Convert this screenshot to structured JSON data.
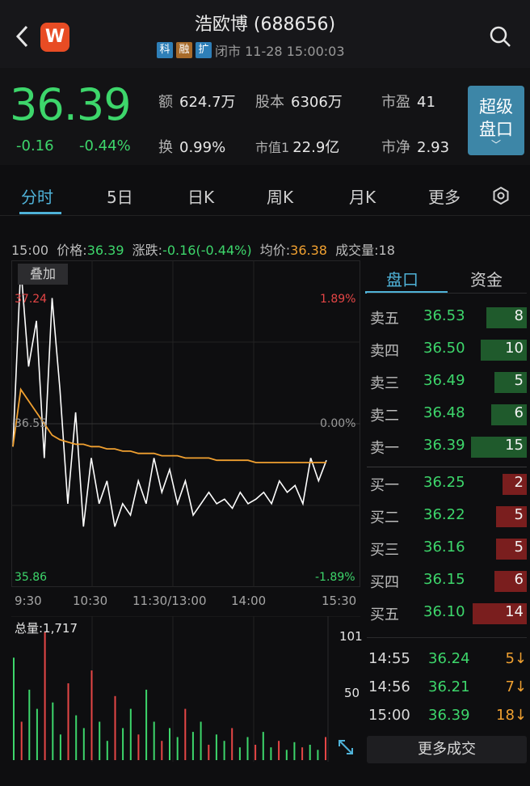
{
  "header": {
    "title": "浩欧博 (688656)",
    "logo_letter": "W",
    "tags": [
      "科",
      "融",
      "扩"
    ],
    "status": "闭市 11-28 15:00:03"
  },
  "quote": {
    "price": "36.39",
    "change": "-0.16",
    "change_pct": "-0.44%",
    "amount_label": "额",
    "amount": "624.7万",
    "share_label": "股本",
    "share": "6306万",
    "pe_label": "市盈",
    "pe": "41",
    "turnover_label": "换",
    "turnover": "0.99%",
    "mcap_label": "市值1",
    "mcap": "22.9亿",
    "pb_label": "市净",
    "pb": "2.93",
    "super_btn_line1": "超级",
    "super_btn_line2": "盘口",
    "super_btn_chevron": "﹀"
  },
  "tabs": [
    "分时",
    "5日",
    "日K",
    "周K",
    "月K",
    "更多"
  ],
  "info_bar": {
    "time": "15:00",
    "price_label": "价格:",
    "price": "36.39",
    "change_label": "涨跌:",
    "change": "-0.16(-0.44%)",
    "avg_label": "均价:",
    "avg": "36.38",
    "vol_label": "成交量:",
    "vol": "18"
  },
  "chart": {
    "overlay_label": "叠加",
    "y_high": "37.24",
    "y_mid": "36.55",
    "y_low": "35.86",
    "pct_high": "1.89%",
    "pct_mid": "0.00%",
    "pct_low": "-1.89%",
    "x_ticks": [
      "9:30",
      "10:30",
      "11:30/13:00",
      "14:00",
      "15:30"
    ],
    "vol_total": "总量:1,717",
    "vol_max": "101",
    "vol_mid": "50"
  },
  "chart_data": {
    "type": "line",
    "series": [
      {
        "values": [
          36.45,
          37.24,
          36.8,
          37.0,
          36.4,
          37.1,
          36.7,
          36.2,
          36.6,
          36.1,
          36.4,
          36.2,
          36.3,
          36.1,
          36.2,
          36.15,
          36.3,
          36.2,
          36.4,
          36.25,
          36.35,
          36.2,
          36.3,
          36.15,
          36.2,
          36.25,
          36.2,
          36.22,
          36.18,
          36.25,
          36.2,
          36.22,
          36.25,
          36.2,
          36.3,
          36.25,
          36.28,
          36.2,
          36.4,
          36.3,
          36.39
        ]
      },
      {
        "values": [
          36.45,
          36.7,
          36.65,
          36.6,
          36.55,
          36.5,
          36.48,
          36.47,
          36.46,
          36.46,
          36.45,
          36.45,
          36.44,
          36.44,
          36.43,
          36.43,
          36.42,
          36.42,
          36.42,
          36.41,
          36.41,
          36.41,
          36.4,
          36.4,
          36.4,
          36.4,
          36.39,
          36.39,
          36.39,
          36.39,
          36.39,
          36.38,
          36.38,
          36.38,
          36.38,
          36.38,
          36.38,
          36.38,
          36.38,
          36.38,
          36.38
        ]
      }
    ],
    "volumes": [
      80,
      30,
      55,
      40,
      100,
      45,
      20,
      60,
      35,
      25,
      70,
      30,
      15,
      50,
      25,
      40,
      20,
      55,
      30,
      15,
      25,
      18,
      40,
      22,
      30,
      12,
      20,
      15,
      25,
      10,
      18,
      12,
      22,
      10,
      15,
      8,
      14,
      10,
      12,
      8,
      18
    ]
  },
  "book": {
    "tab_active": "盘口",
    "tab_other": "资金",
    "asks": [
      {
        "label": "卖五",
        "price": "36.53",
        "vol": "8",
        "frac": 0.25
      },
      {
        "label": "卖四",
        "price": "36.50",
        "vol": "10",
        "frac": 0.29
      },
      {
        "label": "卖三",
        "price": "36.49",
        "vol": "5",
        "frac": 0.2
      },
      {
        "label": "卖二",
        "price": "36.48",
        "vol": "6",
        "frac": 0.22
      },
      {
        "label": "卖一",
        "price": "36.39",
        "vol": "15",
        "frac": 0.35
      }
    ],
    "bids": [
      {
        "label": "买一",
        "price": "36.25",
        "vol": "2",
        "frac": 0.15
      },
      {
        "label": "买二",
        "price": "36.22",
        "vol": "5",
        "frac": 0.19
      },
      {
        "label": "买三",
        "price": "36.16",
        "vol": "5",
        "frac": 0.19
      },
      {
        "label": "买四",
        "price": "36.15",
        "vol": "6",
        "frac": 0.2
      },
      {
        "label": "买五",
        "price": "36.10",
        "vol": "14",
        "frac": 0.34
      }
    ],
    "trades": [
      {
        "time": "14:55",
        "price": "36.24",
        "vol": "5",
        "arrow": "↓"
      },
      {
        "time": "14:56",
        "price": "36.21",
        "vol": "7",
        "arrow": "↓"
      },
      {
        "time": "15:00",
        "price": "36.39",
        "vol": "18",
        "arrow": "↓"
      }
    ],
    "more_label": "更多成交"
  },
  "colors": {
    "up": "#e64646",
    "down": "#3dd66b",
    "accent": "#4fb2d8",
    "avg_line": "#f0a030"
  }
}
